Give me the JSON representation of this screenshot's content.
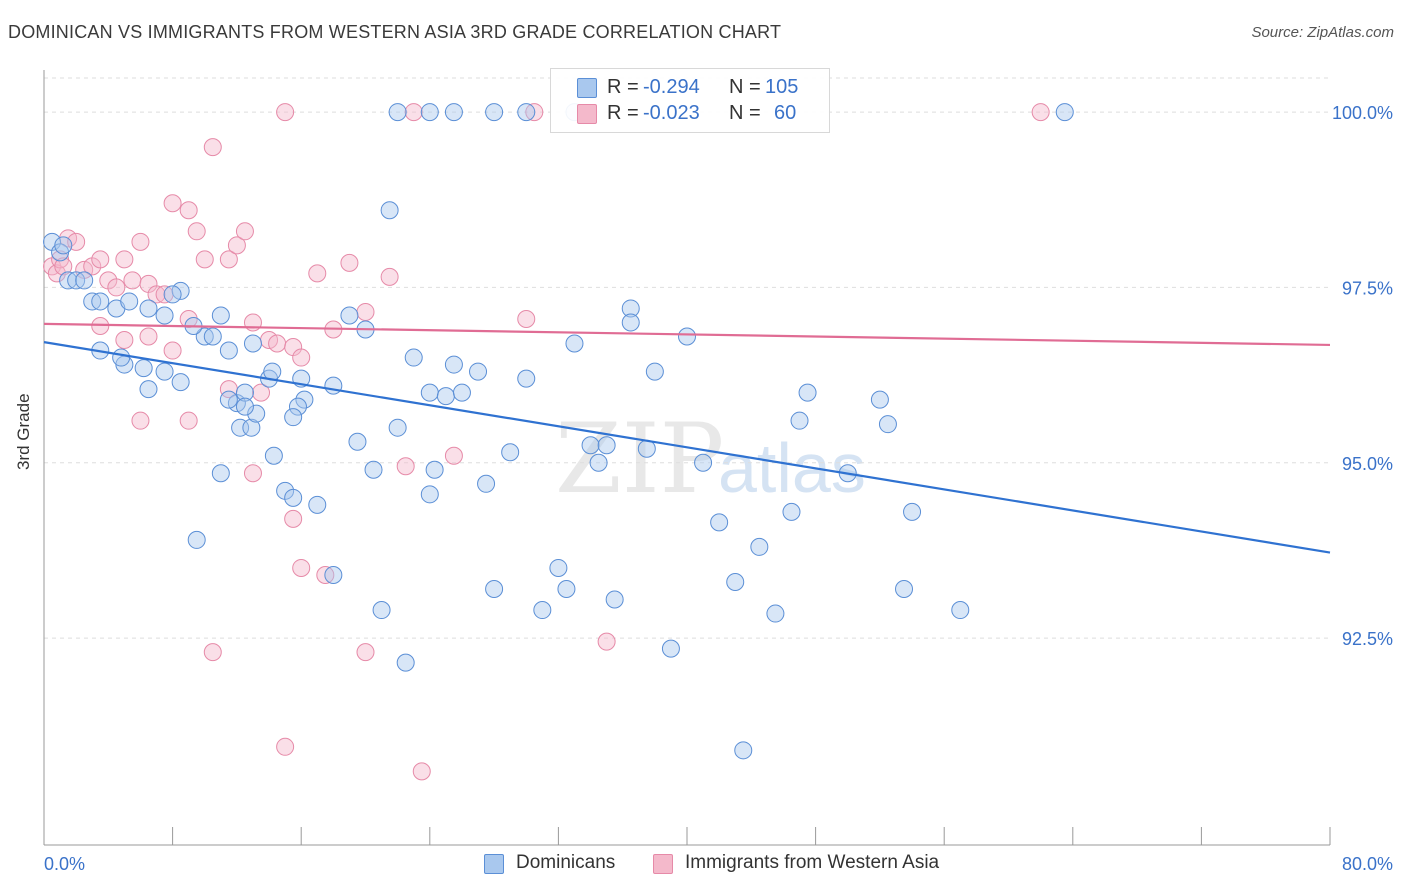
{
  "title": "DOMINICAN VS IMMIGRANTS FROM WESTERN ASIA 3RD GRADE CORRELATION CHART",
  "source": "Source: ZipAtlas.com",
  "legend": {
    "r_label": "R =",
    "n_label": "N =",
    "rows": [
      {
        "r": "-0.294",
        "n": "105"
      },
      {
        "r": "-0.023",
        "n": "60"
      }
    ]
  },
  "colors": {
    "blue_fill": "#a9c8ee",
    "blue_stroke": "#5b8fd6",
    "blue_line": "#2f72d1",
    "pink_fill": "#f4b9cb",
    "pink_stroke": "#e68aa8",
    "pink_line": "#e06c94",
    "tick_label": "#3a72c9",
    "grid": "#dedede"
  },
  "chart_data": {
    "type": "scatter",
    "title": "DOMINICAN VS IMMIGRANTS FROM WESTERN ASIA 3RD GRADE CORRELATION CHART",
    "xlabel": "",
    "ylabel": "3rd Grade",
    "xlim": [
      0,
      80
    ],
    "ylim": [
      89.55,
      100.6
    ],
    "x_tick_labels": [
      "0.0%",
      "80.0%"
    ],
    "y_ticks": [
      92.5,
      95.0,
      97.5,
      100.0
    ],
    "y_tick_labels": [
      "92.5%",
      "95.0%",
      "97.5%",
      "100.0%"
    ],
    "grid": "horizontal dashed",
    "legend_position": "top-center",
    "watermark": "ZIPatlas",
    "series": [
      {
        "name": "Dominicans",
        "color": "blue",
        "trend": {
          "x": [
            0,
            80
          ],
          "y": [
            96.72,
            93.72
          ]
        },
        "points": [
          [
            0.5,
            98.15
          ],
          [
            1.0,
            98.0
          ],
          [
            1.2,
            98.1
          ],
          [
            1.5,
            97.6
          ],
          [
            2.0,
            97.6
          ],
          [
            2.5,
            97.6
          ],
          [
            3.0,
            97.3
          ],
          [
            3.5,
            97.3
          ],
          [
            4.5,
            97.2
          ],
          [
            5.3,
            97.3
          ],
          [
            6.5,
            97.2
          ],
          [
            7.5,
            97.1
          ],
          [
            8.5,
            97.45
          ],
          [
            8.0,
            97.4
          ],
          [
            3.5,
            96.6
          ],
          [
            5.0,
            96.4
          ],
          [
            4.8,
            96.5
          ],
          [
            6.2,
            96.35
          ],
          [
            7.5,
            96.3
          ],
          [
            6.5,
            96.05
          ],
          [
            8.5,
            96.15
          ],
          [
            10.0,
            96.8
          ],
          [
            10.5,
            96.8
          ],
          [
            9.3,
            96.95
          ],
          [
            11.0,
            97.1
          ],
          [
            11.5,
            96.6
          ],
          [
            12.0,
            95.85
          ],
          [
            11.5,
            95.9
          ],
          [
            12.5,
            96.0
          ],
          [
            12.2,
            95.5
          ],
          [
            12.9,
            95.5
          ],
          [
            13.2,
            95.7
          ],
          [
            14.0,
            96.2
          ],
          [
            14.2,
            96.3
          ],
          [
            14.3,
            95.1
          ],
          [
            15.0,
            94.6
          ],
          [
            15.5,
            94.5
          ],
          [
            16.0,
            96.2
          ],
          [
            16.2,
            95.9
          ],
          [
            15.8,
            95.8
          ],
          [
            18.0,
            96.1
          ],
          [
            19.0,
            97.1
          ],
          [
            20.0,
            96.9
          ],
          [
            19.5,
            95.3
          ],
          [
            20.5,
            94.9
          ],
          [
            21.5,
            98.6
          ],
          [
            22.0,
            95.5
          ],
          [
            21.0,
            92.9
          ],
          [
            23.0,
            96.5
          ],
          [
            24.0,
            96.0
          ],
          [
            24.3,
            94.9
          ],
          [
            24.0,
            94.55
          ],
          [
            25.0,
            95.95
          ],
          [
            25.5,
            96.4
          ],
          [
            26.0,
            96.0
          ],
          [
            27.0,
            96.3
          ],
          [
            27.5,
            94.7
          ],
          [
            28.0,
            93.2
          ],
          [
            29.0,
            95.15
          ],
          [
            30.0,
            96.2
          ],
          [
            31.0,
            92.9
          ],
          [
            32.5,
            93.2
          ],
          [
            32.0,
            93.5
          ],
          [
            33.0,
            96.7
          ],
          [
            34.0,
            95.25
          ],
          [
            34.5,
            95.0
          ],
          [
            35.0,
            95.25
          ],
          [
            35.5,
            93.05
          ],
          [
            36.5,
            97.2
          ],
          [
            36.5,
            97.0
          ],
          [
            37.5,
            95.2
          ],
          [
            38.0,
            96.3
          ],
          [
            39.0,
            92.35
          ],
          [
            40.0,
            96.8
          ],
          [
            41.0,
            95.0
          ],
          [
            42.0,
            94.15
          ],
          [
            43.0,
            93.3
          ],
          [
            43.5,
            90.9
          ],
          [
            44.5,
            93.8
          ],
          [
            45.5,
            92.85
          ],
          [
            46.5,
            94.3
          ],
          [
            47.0,
            95.6
          ],
          [
            47.5,
            96.0
          ],
          [
            50.0,
            94.85
          ],
          [
            52.0,
            95.9
          ],
          [
            52.5,
            95.55
          ],
          [
            53.5,
            93.2
          ],
          [
            54.0,
            94.3
          ],
          [
            57.0,
            92.9
          ],
          [
            63.5,
            100.0
          ],
          [
            22.0,
            100.0
          ],
          [
            24.0,
            100.0
          ],
          [
            25.5,
            100.0
          ],
          [
            28.0,
            100.0
          ],
          [
            30.0,
            100.0
          ],
          [
            33.0,
            100.0
          ],
          [
            13.0,
            96.7
          ],
          [
            15.5,
            95.65
          ],
          [
            17.0,
            94.4
          ],
          [
            18.0,
            93.4
          ],
          [
            22.5,
            92.15
          ],
          [
            11.0,
            94.85
          ],
          [
            9.5,
            93.9
          ],
          [
            12.5,
            95.8
          ]
        ]
      },
      {
        "name": "Immigrants from Western Asia",
        "color": "pink",
        "trend": {
          "x": [
            0,
            80
          ],
          "y": [
            96.98,
            96.68
          ]
        },
        "points": [
          [
            0.5,
            97.8
          ],
          [
            0.8,
            97.7
          ],
          [
            1.0,
            97.9
          ],
          [
            1.2,
            97.8
          ],
          [
            1.5,
            98.2
          ],
          [
            2.0,
            98.15
          ],
          [
            2.5,
            97.75
          ],
          [
            3.0,
            97.8
          ],
          [
            3.5,
            97.9
          ],
          [
            4.0,
            97.6
          ],
          [
            4.5,
            97.5
          ],
          [
            5.0,
            97.9
          ],
          [
            5.5,
            97.6
          ],
          [
            6.0,
            98.15
          ],
          [
            6.5,
            97.55
          ],
          [
            7.0,
            97.4
          ],
          [
            7.5,
            97.4
          ],
          [
            8.0,
            98.7
          ],
          [
            9.0,
            98.6
          ],
          [
            9.5,
            98.3
          ],
          [
            10.0,
            97.9
          ],
          [
            10.5,
            99.5
          ],
          [
            11.5,
            97.9
          ],
          [
            12.0,
            98.1
          ],
          [
            12.5,
            98.3
          ],
          [
            13.0,
            97.0
          ],
          [
            14.0,
            96.75
          ],
          [
            14.5,
            96.7
          ],
          [
            15.5,
            96.65
          ],
          [
            16.0,
            96.5
          ],
          [
            17.0,
            97.7
          ],
          [
            18.0,
            96.9
          ],
          [
            19.0,
            97.85
          ],
          [
            20.0,
            97.15
          ],
          [
            21.5,
            97.65
          ],
          [
            3.5,
            96.95
          ],
          [
            5.0,
            96.75
          ],
          [
            6.5,
            96.8
          ],
          [
            8.0,
            96.6
          ],
          [
            9.0,
            97.05
          ],
          [
            11.5,
            96.05
          ],
          [
            13.5,
            96.0
          ],
          [
            6.0,
            95.6
          ],
          [
            9.0,
            95.6
          ],
          [
            13.0,
            94.85
          ],
          [
            15.5,
            94.2
          ],
          [
            16.0,
            93.5
          ],
          [
            17.5,
            93.4
          ],
          [
            20.0,
            92.3
          ],
          [
            22.5,
            94.95
          ],
          [
            25.5,
            95.1
          ],
          [
            30.0,
            97.05
          ],
          [
            35.0,
            92.45
          ],
          [
            23.5,
            90.6
          ],
          [
            15.0,
            90.95
          ],
          [
            10.5,
            92.3
          ],
          [
            15.0,
            100.0
          ],
          [
            23.0,
            100.0
          ],
          [
            30.5,
            100.0
          ],
          [
            62.0,
            100.0
          ]
        ]
      }
    ]
  },
  "bottom_legend": [
    "Dominicans",
    "Immigrants from Western Asia"
  ]
}
